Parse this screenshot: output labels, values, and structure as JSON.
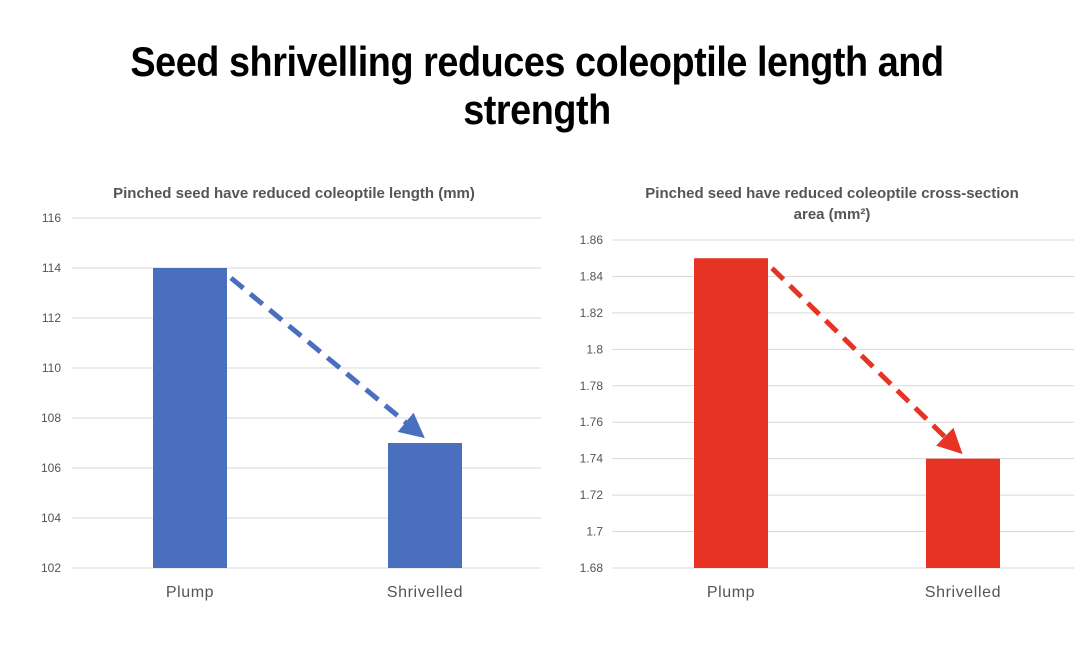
{
  "title": "Seed shrivelling reduces coleoptile length and strength",
  "chart_data": [
    {
      "type": "bar",
      "title": "Pinched seed have reduced coleoptile length (mm)",
      "categories": [
        "Plump",
        "Shrivelled"
      ],
      "values": [
        114,
        107
      ],
      "ylim": [
        102,
        116
      ],
      "ytick_step": 2,
      "yticks": [
        "102",
        "104",
        "106",
        "108",
        "110",
        "112",
        "114",
        "116"
      ],
      "bar_color": "#4a6fbe",
      "arrow_color": "#4a6fbe",
      "annotation": "dashed arrow from Plump bar top to Shrivelled bar top",
      "xlabel": "",
      "ylabel": "",
      "grid": true
    },
    {
      "type": "bar",
      "title": "Pinched seed have reduced coleoptile cross-section area (mm²)",
      "title_lines": [
        "Pinched seed have reduced coleoptile cross-section",
        "area (mm²)"
      ],
      "categories": [
        "Plump",
        "Shrivelled"
      ],
      "values": [
        1.85,
        1.74
      ],
      "ylim": [
        1.68,
        1.86
      ],
      "ytick_step": 0.02,
      "yticks": [
        "1.68",
        "1.7",
        "1.72",
        "1.74",
        "1.76",
        "1.78",
        "1.8",
        "1.82",
        "1.84",
        "1.86"
      ],
      "bar_color": "#e63324",
      "arrow_color": "#e63324",
      "annotation": "dashed arrow from Plump bar top to Shrivelled bar top",
      "xlabel": "",
      "ylabel": "",
      "grid": true
    }
  ]
}
